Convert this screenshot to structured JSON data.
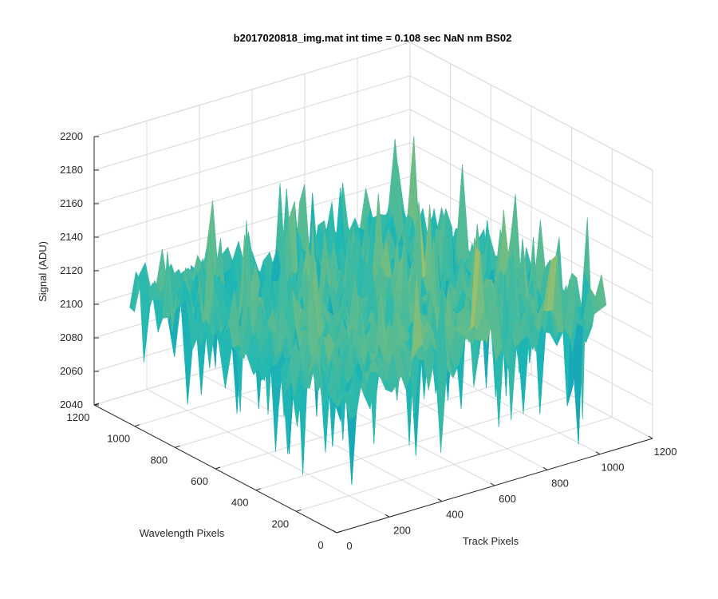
{
  "chart_data": {
    "type": "surface",
    "title": "b2017020818_img.mat int time = 0.108 sec  NaN nm BS02",
    "xlabel": "Track Pixels",
    "ylabel": "Wavelength Pixels",
    "zlabel": "Signal (ADU)",
    "xlim": [
      0,
      1200
    ],
    "ylim": [
      0,
      1200
    ],
    "zlim": [
      2040,
      2200
    ],
    "xticks": [
      "0",
      "200",
      "400",
      "600",
      "800",
      "1000",
      "1200"
    ],
    "yticks": [
      "0",
      "200",
      "400",
      "600",
      "800",
      "1000",
      "1200"
    ],
    "zticks": [
      "2040",
      "2060",
      "2080",
      "2100",
      "2120",
      "2140",
      "2160",
      "2180",
      "2200"
    ],
    "data_range": {
      "x": [
        0,
        1024
      ],
      "y": [
        0,
        1024
      ]
    },
    "z_mean_approx": 2120,
    "z_min_approx": 2045,
    "z_max_approx": 2180,
    "grid": true,
    "colormap": "parula",
    "colors": {
      "low": "#0072bd",
      "mid": "#1fb8b4",
      "high": "#edc33a"
    }
  }
}
